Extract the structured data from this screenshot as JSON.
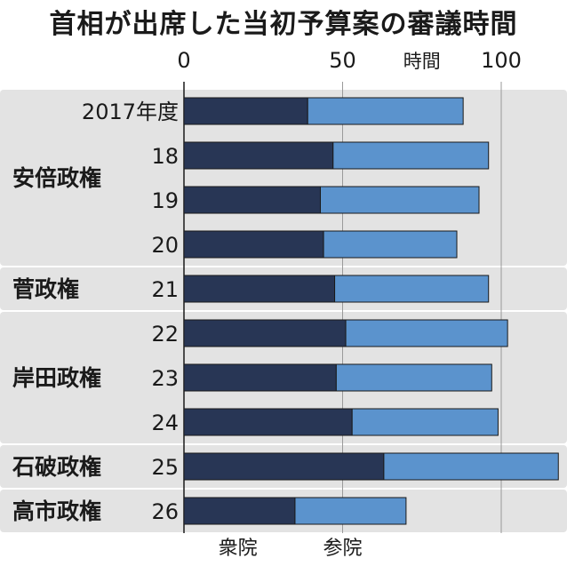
{
  "title": "首相が出席した当初予算案の審議時間",
  "chart_data": {
    "type": "bar",
    "stacked": true,
    "orientation": "horizontal",
    "unit_label": "時間",
    "xlim": [
      0,
      120
    ],
    "x_ticks": [
      0,
      50,
      100
    ],
    "categories": [
      "2017年度",
      "18",
      "19",
      "20",
      "21",
      "22",
      "23",
      "24",
      "25",
      "26"
    ],
    "groups": [
      {
        "name": "安倍政権",
        "categories": [
          "2017年度",
          "18",
          "19",
          "20"
        ]
      },
      {
        "name": "菅政権",
        "categories": [
          "21"
        ]
      },
      {
        "name": "岸田政権",
        "categories": [
          "22",
          "23",
          "24"
        ]
      },
      {
        "name": "石破政権",
        "categories": [
          "25"
        ]
      },
      {
        "name": "高市政権",
        "categories": [
          "26"
        ]
      }
    ],
    "series": [
      {
        "name": "衆院",
        "color": "#283655",
        "values": [
          39,
          47,
          43,
          44,
          47.5,
          51,
          48,
          53,
          63,
          35
        ]
      },
      {
        "name": "参院",
        "color": "#5b93cd",
        "values": [
          49,
          49,
          50,
          42,
          48.5,
          51,
          49,
          46,
          55,
          35
        ]
      }
    ],
    "legend": [
      "衆院",
      "参院"
    ]
  }
}
